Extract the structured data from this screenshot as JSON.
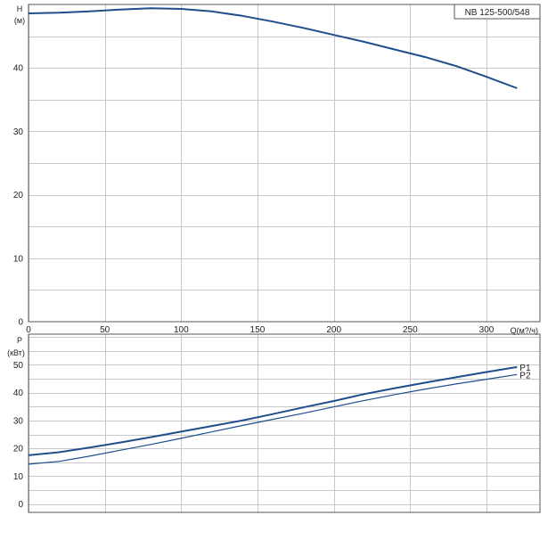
{
  "chart_data": [
    {
      "type": "line",
      "title": "NB 125-500/548",
      "xlabel": "Q(м?/ч)",
      "ylabel": "H",
      "ylabel_unit": "(м)",
      "xlim": [
        0,
        335
      ],
      "ylim": [
        0,
        50
      ],
      "x_ticks": [
        0,
        50,
        100,
        150,
        200,
        250,
        300
      ],
      "x_tick_labels": [
        "0",
        "50",
        "100",
        "150",
        "200",
        "250",
        "300"
      ],
      "y_ticks": [
        0,
        10,
        20,
        30,
        40
      ],
      "y_tick_labels": [
        "0",
        "10",
        "20",
        "30",
        "40"
      ],
      "grid": true,
      "series": [
        {
          "color": "#1f4e8c",
          "x": [
            0,
            20,
            40,
            60,
            80,
            100,
            120,
            140,
            160,
            180,
            200,
            220,
            240,
            260,
            280,
            300,
            320
          ],
          "y": [
            48.6,
            48.7,
            48.9,
            49.2,
            49.4,
            49.3,
            48.9,
            48.2,
            47.3,
            46.3,
            45.2,
            44.1,
            42.9,
            41.7,
            40.3,
            38.6,
            36.8
          ]
        }
      ]
    },
    {
      "type": "line",
      "xlabel": "",
      "ylabel": "P",
      "ylabel_unit": "(кВт)",
      "xlim": [
        0,
        335
      ],
      "ylim": [
        -3,
        61
      ],
      "y_ticks": [
        0,
        10,
        20,
        30,
        40,
        50
      ],
      "y_tick_labels": [
        "0",
        "10",
        "20",
        "30",
        "40",
        "50"
      ],
      "grid": true,
      "series": [
        {
          "name": "P1",
          "color": "#1f4e8c",
          "x": [
            0,
            20,
            40,
            60,
            80,
            100,
            120,
            140,
            160,
            180,
            200,
            220,
            240,
            260,
            280,
            300,
            320
          ],
          "y": [
            17.5,
            18.6,
            20.3,
            22.1,
            24.0,
            26.0,
            28.0,
            30.0,
            32.3,
            34.7,
            37.0,
            39.5,
            41.6,
            43.6,
            45.5,
            47.4,
            49.2
          ]
        },
        {
          "name": "P2",
          "color": "#1f4e8c",
          "x": [
            0,
            20,
            40,
            60,
            80,
            100,
            120,
            140,
            160,
            180,
            200,
            220,
            240,
            260,
            280,
            300,
            320
          ],
          "y": [
            14.3,
            15.3,
            17.2,
            19.3,
            21.4,
            23.6,
            25.9,
            28.2,
            30.4,
            32.6,
            34.9,
            37.2,
            39.3,
            41.3,
            43.1,
            44.8,
            46.5
          ]
        }
      ]
    }
  ]
}
